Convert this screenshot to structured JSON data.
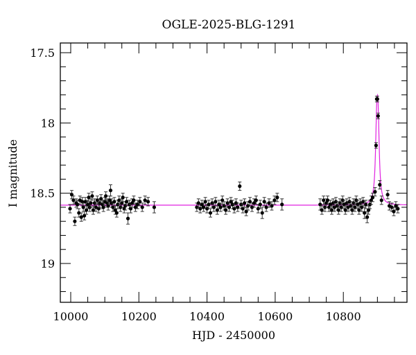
{
  "chart_data": {
    "type": "scatter",
    "title": "OGLE-2025-BLG-1291",
    "xlabel": "HJD - 2450000",
    "ylabel": "I magnitude",
    "xlim": [
      9970,
      10985
    ],
    "ylim": [
      19.27,
      17.43
    ],
    "y_inverted": true,
    "x_ticks": [
      10000,
      10200,
      10400,
      10600,
      10800
    ],
    "x_minor_step": 50,
    "y_ticks": [
      17.5,
      18,
      18.5,
      19
    ],
    "y_tick_labels": [
      "17.5",
      "18",
      "18.5",
      "19"
    ],
    "y_minor_step": 0.1,
    "grid": false,
    "legend": null,
    "colors": {
      "data": "#000000",
      "model": "#e020e0",
      "axes": "#000000"
    },
    "model": {
      "name": "microlensing fit",
      "baseline_mag": 18.585,
      "peak_mag": 17.8,
      "t0": 10900,
      "tE_width_days": 4.5
    },
    "series": [
      {
        "name": "OGLE I-band data",
        "points": [
          [
            9998,
            18.61,
            0.03
          ],
          [
            10003,
            18.51,
            0.03
          ],
          [
            10008,
            18.55,
            0.03
          ],
          [
            10012,
            18.7,
            0.03
          ],
          [
            10016,
            18.57,
            0.03
          ],
          [
            10020,
            18.58,
            0.03
          ],
          [
            10024,
            18.64,
            0.03
          ],
          [
            10027,
            18.55,
            0.03
          ],
          [
            10031,
            18.67,
            0.03
          ],
          [
            10034,
            18.56,
            0.03
          ],
          [
            10037,
            18.6,
            0.03
          ],
          [
            10040,
            18.66,
            0.03
          ],
          [
            10043,
            18.56,
            0.03
          ],
          [
            10046,
            18.62,
            0.03
          ],
          [
            10050,
            18.58,
            0.03
          ],
          [
            10053,
            18.53,
            0.03
          ],
          [
            10056,
            18.6,
            0.03
          ],
          [
            10059,
            18.57,
            0.03
          ],
          [
            10063,
            18.52,
            0.03
          ],
          [
            10066,
            18.62,
            0.03
          ],
          [
            10070,
            18.57,
            0.03
          ],
          [
            10074,
            18.6,
            0.03
          ],
          [
            10078,
            18.55,
            0.03
          ],
          [
            10082,
            18.61,
            0.03
          ],
          [
            10085,
            18.57,
            0.03
          ],
          [
            10089,
            18.54,
            0.03
          ],
          [
            10093,
            18.58,
            0.03
          ],
          [
            10096,
            18.6,
            0.03
          ],
          [
            10100,
            18.56,
            0.03
          ],
          [
            10103,
            18.52,
            0.03
          ],
          [
            10107,
            18.57,
            0.03
          ],
          [
            10110,
            18.59,
            0.03
          ],
          [
            10114,
            18.55,
            0.03
          ],
          [
            10117,
            18.48,
            0.04
          ],
          [
            10120,
            18.57,
            0.03
          ],
          [
            10124,
            18.6,
            0.03
          ],
          [
            10128,
            18.56,
            0.03
          ],
          [
            10131,
            18.62,
            0.03
          ],
          [
            10135,
            18.64,
            0.03
          ],
          [
            10138,
            18.58,
            0.03
          ],
          [
            10142,
            18.55,
            0.03
          ],
          [
            10146,
            18.6,
            0.03
          ],
          [
            10150,
            18.57,
            0.03
          ],
          [
            10153,
            18.53,
            0.03
          ],
          [
            10157,
            18.61,
            0.03
          ],
          [
            10160,
            18.59,
            0.03
          ],
          [
            10164,
            18.56,
            0.03
          ],
          [
            10168,
            18.68,
            0.04
          ],
          [
            10172,
            18.58,
            0.03
          ],
          [
            10176,
            18.61,
            0.03
          ],
          [
            10180,
            18.57,
            0.03
          ],
          [
            10185,
            18.55,
            0.03
          ],
          [
            10190,
            18.6,
            0.03
          ],
          [
            10196,
            18.58,
            0.03
          ],
          [
            10203,
            18.56,
            0.03
          ],
          [
            10210,
            18.6,
            0.03
          ],
          [
            10218,
            18.55,
            0.03
          ],
          [
            10227,
            18.56,
            0.03
          ],
          [
            10245,
            18.6,
            0.04
          ],
          [
            10370,
            18.6,
            0.03
          ],
          [
            10375,
            18.57,
            0.03
          ],
          [
            10380,
            18.61,
            0.03
          ],
          [
            10385,
            18.58,
            0.03
          ],
          [
            10390,
            18.6,
            0.03
          ],
          [
            10395,
            18.56,
            0.03
          ],
          [
            10400,
            18.61,
            0.03
          ],
          [
            10405,
            18.58,
            0.03
          ],
          [
            10410,
            18.64,
            0.03
          ],
          [
            10415,
            18.57,
            0.03
          ],
          [
            10420,
            18.6,
            0.03
          ],
          [
            10425,
            18.56,
            0.03
          ],
          [
            10430,
            18.62,
            0.03
          ],
          [
            10435,
            18.58,
            0.03
          ],
          [
            10440,
            18.6,
            0.03
          ],
          [
            10445,
            18.55,
            0.03
          ],
          [
            10450,
            18.59,
            0.03
          ],
          [
            10455,
            18.62,
            0.03
          ],
          [
            10460,
            18.57,
            0.03
          ],
          [
            10465,
            18.6,
            0.03
          ],
          [
            10470,
            18.56,
            0.03
          ],
          [
            10475,
            18.58,
            0.03
          ],
          [
            10480,
            18.61,
            0.03
          ],
          [
            10485,
            18.57,
            0.03
          ],
          [
            10490,
            18.6,
            0.03
          ],
          [
            10496,
            18.45,
            0.03
          ],
          [
            10500,
            18.58,
            0.03
          ],
          [
            10505,
            18.61,
            0.03
          ],
          [
            10510,
            18.57,
            0.03
          ],
          [
            10515,
            18.63,
            0.03
          ],
          [
            10520,
            18.59,
            0.03
          ],
          [
            10526,
            18.56,
            0.03
          ],
          [
            10532,
            18.6,
            0.03
          ],
          [
            10538,
            18.57,
            0.03
          ],
          [
            10544,
            18.55,
            0.03
          ],
          [
            10550,
            18.61,
            0.03
          ],
          [
            10556,
            18.58,
            0.03
          ],
          [
            10562,
            18.64,
            0.04
          ],
          [
            10568,
            18.56,
            0.03
          ],
          [
            10574,
            18.6,
            0.03
          ],
          [
            10582,
            18.57,
            0.03
          ],
          [
            10590,
            18.59,
            0.03
          ],
          [
            10598,
            18.55,
            0.03
          ],
          [
            10606,
            18.53,
            0.03
          ],
          [
            10620,
            18.58,
            0.04
          ],
          [
            10732,
            18.58,
            0.04
          ],
          [
            10737,
            18.62,
            0.03
          ],
          [
            10742,
            18.55,
            0.03
          ],
          [
            10746,
            18.6,
            0.03
          ],
          [
            10750,
            18.57,
            0.03
          ],
          [
            10754,
            18.55,
            0.03
          ],
          [
            10758,
            18.6,
            0.03
          ],
          [
            10762,
            18.58,
            0.03
          ],
          [
            10766,
            18.62,
            0.03
          ],
          [
            10770,
            18.57,
            0.03
          ],
          [
            10774,
            18.6,
            0.03
          ],
          [
            10778,
            18.56,
            0.03
          ],
          [
            10782,
            18.59,
            0.03
          ],
          [
            10786,
            18.62,
            0.03
          ],
          [
            10790,
            18.57,
            0.03
          ],
          [
            10794,
            18.6,
            0.03
          ],
          [
            10798,
            18.55,
            0.03
          ],
          [
            10802,
            18.58,
            0.03
          ],
          [
            10806,
            18.62,
            0.03
          ],
          [
            10810,
            18.57,
            0.03
          ],
          [
            10814,
            18.6,
            0.03
          ],
          [
            10818,
            18.56,
            0.03
          ],
          [
            10822,
            18.59,
            0.03
          ],
          [
            10826,
            18.62,
            0.03
          ],
          [
            10830,
            18.57,
            0.03
          ],
          [
            10834,
            18.6,
            0.03
          ],
          [
            10838,
            18.55,
            0.03
          ],
          [
            10842,
            18.58,
            0.03
          ],
          [
            10846,
            18.62,
            0.03
          ],
          [
            10850,
            18.57,
            0.03
          ],
          [
            10854,
            18.6,
            0.03
          ],
          [
            10858,
            18.56,
            0.03
          ],
          [
            10862,
            18.64,
            0.04
          ],
          [
            10866,
            18.58,
            0.03
          ],
          [
            10870,
            18.67,
            0.04
          ],
          [
            10874,
            18.62,
            0.03
          ],
          [
            10878,
            18.58,
            0.03
          ],
          [
            10882,
            18.55,
            0.03
          ],
          [
            10886,
            18.53,
            0.03
          ],
          [
            10893,
            18.49,
            0.03
          ],
          [
            10896,
            18.16,
            0.02
          ],
          [
            10898,
            17.83,
            0.02
          ],
          [
            10900,
            17.83,
            0.02
          ],
          [
            10902,
            17.95,
            0.02
          ],
          [
            10907,
            18.44,
            0.03
          ],
          [
            10912,
            18.55,
            0.03
          ],
          [
            10930,
            18.51,
            0.03
          ],
          [
            10935,
            18.59,
            0.03
          ],
          [
            10942,
            18.6,
            0.03
          ],
          [
            10948,
            18.63,
            0.03
          ],
          [
            10954,
            18.59,
            0.03
          ],
          [
            10960,
            18.61,
            0.03
          ]
        ]
      }
    ]
  }
}
